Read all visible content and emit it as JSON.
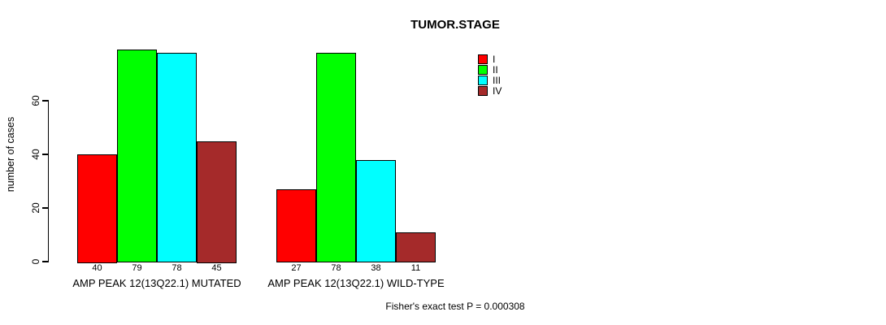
{
  "title": "TUMOR.STAGE",
  "chart_data": {
    "type": "bar",
    "title": "TUMOR.STAGE",
    "xlabel": "",
    "ylabel": "number of cases",
    "yticks": [
      0,
      20,
      40,
      60
    ],
    "ylim": [
      0,
      60
    ],
    "grid": false,
    "categories": [
      "AMP PEAK 12(13Q22.1) MUTATED",
      "AMP PEAK 12(13Q22.1) WILD-TYPE"
    ],
    "series": [
      {
        "name": "I",
        "color": "#ff0000",
        "values": [
          40,
          27
        ]
      },
      {
        "name": "II",
        "color": "#00ff00",
        "values": [
          79,
          78
        ]
      },
      {
        "name": "III",
        "color": "#00ffff",
        "values": [
          78,
          38
        ]
      },
      {
        "name": "IV",
        "color": "#a52a2a",
        "values": [
          45,
          11
        ]
      }
    ],
    "bar_value_labels": [
      [
        40,
        79,
        78,
        45
      ],
      [
        27,
        78,
        38,
        11
      ]
    ],
    "legend": {
      "position": "top-right",
      "entries": [
        {
          "label": "I",
          "color": "#ff0000"
        },
        {
          "label": "II",
          "color": "#00ff00"
        },
        {
          "label": "III",
          "color": "#00ffff"
        },
        {
          "label": "IV",
          "color": "#a52a2a"
        }
      ]
    },
    "annotation": "Fisher's exact test P = 0.000308"
  }
}
